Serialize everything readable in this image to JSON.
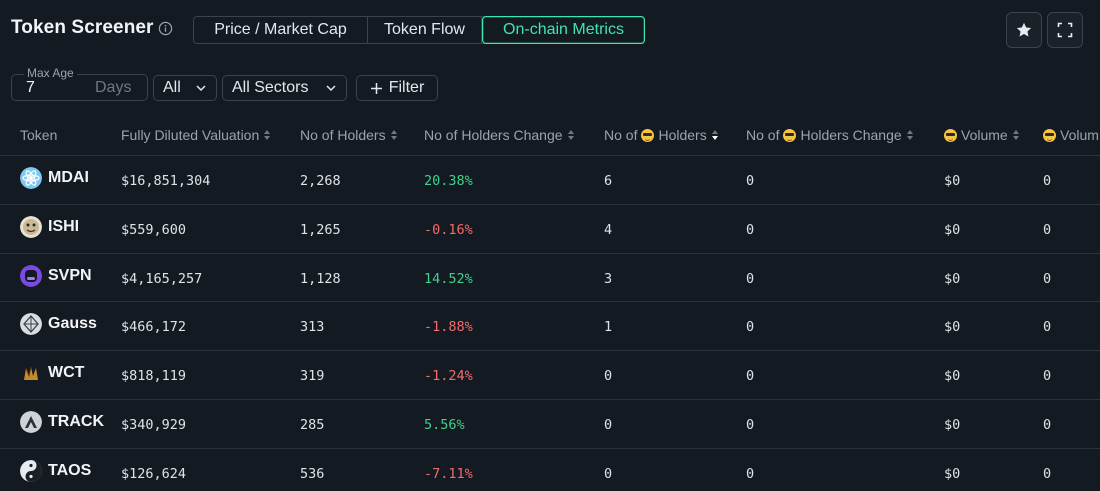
{
  "header": {
    "title": "Token Screener",
    "tabs": [
      {
        "label": "Price / Market Cap",
        "active": false
      },
      {
        "label": "Token Flow",
        "active": false
      },
      {
        "label": "On-chain Metrics",
        "active": true
      }
    ],
    "accent_color": "#3ee6b0"
  },
  "filters": {
    "max_age_label": "Max Age",
    "max_age_value": "7",
    "max_age_unit": "Days",
    "chain_select": "All",
    "sector_select": "All Sectors",
    "filter_button": "Filter"
  },
  "table": {
    "columns": [
      "Token",
      "Fully Diluted Valuation",
      "No of Holders",
      "No of Holders Change",
      "No of",
      "Holders",
      "No of",
      "Holders Change",
      "Volume",
      "Volum"
    ],
    "rows": [
      {
        "token": "MDAI",
        "fdv": "$16,851,304",
        "holders": "2,268",
        "change": "20.38%",
        "trend": "pos",
        "e_holders": "6",
        "e_change": "0",
        "volume": "$0",
        "volume2": "0"
      },
      {
        "token": "ISHI",
        "fdv": "$559,600",
        "holders": "1,265",
        "change": "-0.16%",
        "trend": "neg",
        "e_holders": "4",
        "e_change": "0",
        "volume": "$0",
        "volume2": "0"
      },
      {
        "token": "SVPN",
        "fdv": "$4,165,257",
        "holders": "1,128",
        "change": "14.52%",
        "trend": "pos",
        "e_holders": "3",
        "e_change": "0",
        "volume": "$0",
        "volume2": "0"
      },
      {
        "token": "Gauss",
        "fdv": "$466,172",
        "holders": "313",
        "change": "-1.88%",
        "trend": "neg",
        "e_holders": "1",
        "e_change": "0",
        "volume": "$0",
        "volume2": "0"
      },
      {
        "token": "WCT",
        "fdv": "$818,119",
        "holders": "319",
        "change": "-1.24%",
        "trend": "neg",
        "e_holders": "0",
        "e_change": "0",
        "volume": "$0",
        "volume2": "0"
      },
      {
        "token": "TRACK",
        "fdv": "$340,929",
        "holders": "285",
        "change": "5.56%",
        "trend": "pos",
        "e_holders": "0",
        "e_change": "0",
        "volume": "$0",
        "volume2": "0"
      },
      {
        "token": "TAOS",
        "fdv": "$126,624",
        "holders": "536",
        "change": "-7.11%",
        "trend": "neg",
        "e_holders": "0",
        "e_change": "0",
        "volume": "$0",
        "volume2": "0"
      }
    ]
  }
}
